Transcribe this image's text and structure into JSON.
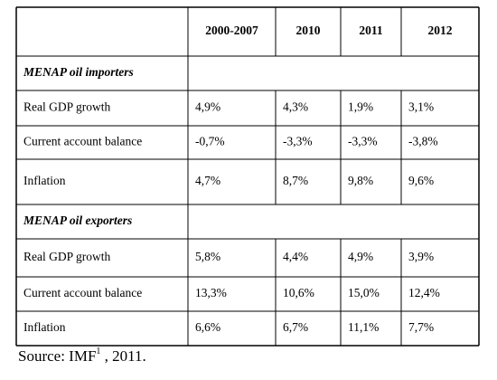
{
  "table": {
    "columns": [
      "2000-2007",
      "2010",
      "2011",
      "2012"
    ],
    "sections": [
      {
        "title": "MENAP oil importers",
        "rows": [
          {
            "label": "Real GDP growth",
            "values": [
              "4,9%",
              "4,3%",
              "1,9%",
              "3,1%"
            ]
          },
          {
            "label": "Current account balance",
            "values": [
              "-0,7%",
              "-3,3%",
              "-3,3%",
              "-3,8%"
            ]
          },
          {
            "label": "Inflation",
            "values": [
              "4,7%",
              "8,7%",
              "9,8%",
              "9,6%"
            ]
          }
        ]
      },
      {
        "title": "MENAP oil exporters",
        "rows": [
          {
            "label": "Real GDP growth",
            "values": [
              "5,8%",
              "4,4%",
              "4,9%",
              "3,9%"
            ]
          },
          {
            "label": "Current account balance",
            "values": [
              "13,3%",
              "10,6%",
              "15,0%",
              "12,4%"
            ]
          },
          {
            "label": "Inflation",
            "values": [
              "6,6%",
              "6,7%",
              "11,1%",
              "7,7%"
            ]
          }
        ]
      }
    ]
  },
  "source": {
    "text": "Source: IMF",
    "footnote": "1",
    "suffix": " , 2011."
  }
}
